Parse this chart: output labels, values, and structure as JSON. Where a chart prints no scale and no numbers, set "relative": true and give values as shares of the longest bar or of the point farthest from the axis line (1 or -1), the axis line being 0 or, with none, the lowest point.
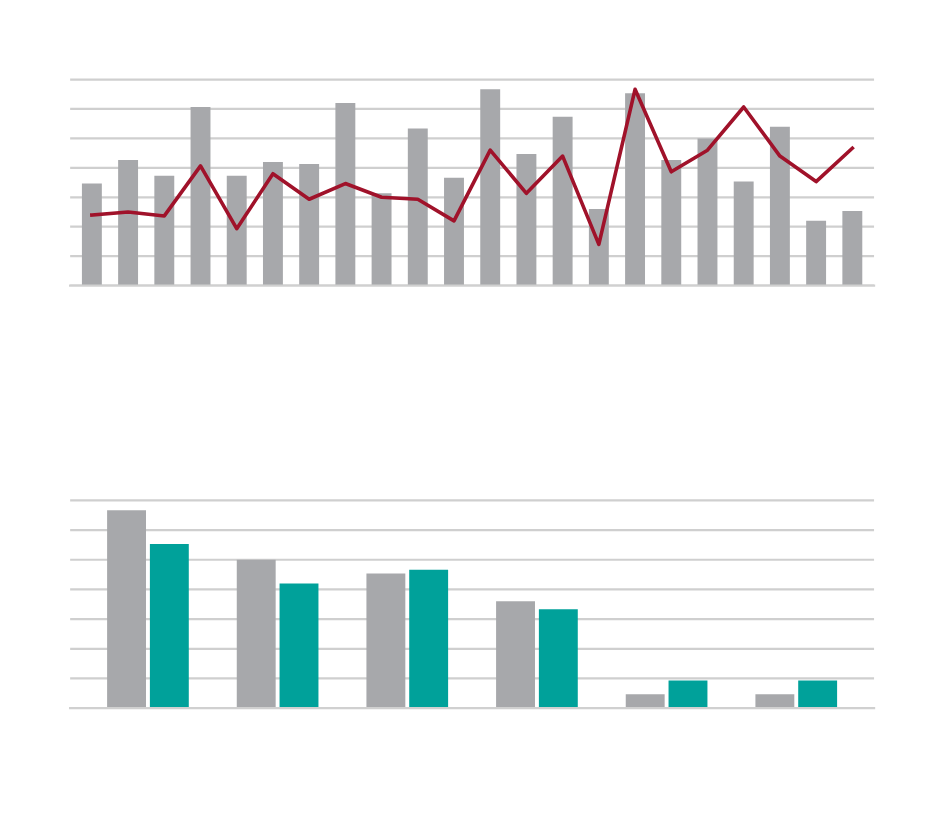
{
  "chart_data": [
    {
      "type": "bar",
      "relative": true,
      "grid": "y",
      "categories": [
        null,
        null,
        null,
        null,
        null,
        null,
        null,
        null,
        null,
        null,
        null,
        null,
        null,
        null,
        null,
        null,
        null,
        null,
        null,
        null,
        null,
        null
      ],
      "series": [
        {
          "color": "#a7a8ab",
          "values": [
            0.52,
            0.64,
            0.56,
            0.91,
            0.56,
            0.63,
            0.62,
            0.93,
            0.47,
            0.8,
            0.55,
            1.0,
            0.67,
            0.86,
            0.39,
            0.98,
            0.64,
            0.75,
            0.53,
            0.81,
            0.33,
            0.38
          ]
        }
      ]
    },
    {
      "type": "line",
      "relative": true,
      "categories": [
        null,
        null,
        null,
        null,
        null,
        null,
        null,
        null,
        null,
        null,
        null,
        null,
        null,
        null,
        null,
        null,
        null,
        null,
        null,
        null,
        null,
        null
      ],
      "series": [
        {
          "color": "#a0122a",
          "values": [
            0.36,
            0.375,
            0.355,
            0.61,
            0.29,
            0.57,
            0.44,
            0.52,
            0.45,
            0.44,
            0.33,
            0.69,
            0.47,
            0.66,
            0.21,
            1.0,
            0.58,
            0.69,
            0.91,
            0.66,
            0.53,
            0.7
          ]
        }
      ]
    },
    {
      "type": "bar",
      "relative": true,
      "grid": "y",
      "categories": [
        null,
        null,
        null,
        null,
        null,
        null
      ],
      "series": [
        {
          "color": "#a7a8ab",
          "values": [
            1.0,
            0.75,
            0.68,
            0.54,
            0.07,
            0.07
          ]
        },
        {
          "color": "#00a19a",
          "values": [
            0.83,
            0.63,
            0.7,
            0.5,
            0.14,
            0.14
          ]
        }
      ]
    }
  ]
}
